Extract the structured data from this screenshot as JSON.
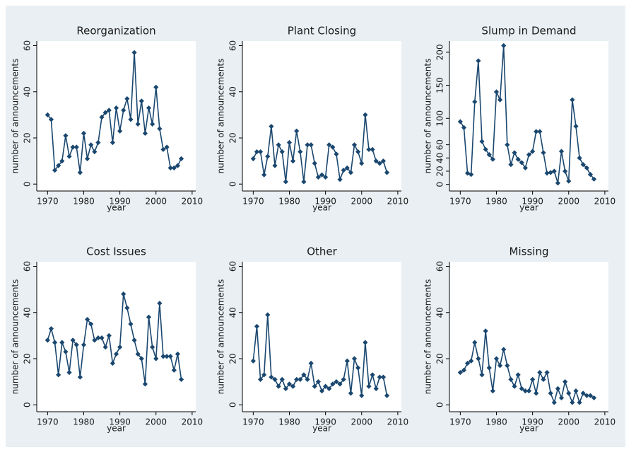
{
  "chart_data": [
    {
      "type": "line",
      "title": "Reorganization",
      "xlabel": "year",
      "ylabel": "number of announcements",
      "color": "#1a476f",
      "x": [
        1970,
        1971,
        1972,
        1973,
        1974,
        1975,
        1976,
        1977,
        1978,
        1979,
        1980,
        1981,
        1982,
        1983,
        1984,
        1985,
        1986,
        1987,
        1988,
        1989,
        1990,
        1991,
        1992,
        1993,
        1994,
        1995,
        1996,
        1997,
        1998,
        1999,
        2000,
        2001,
        2002,
        2003,
        2004,
        2005,
        2006,
        2007
      ],
      "values": [
        30,
        28,
        6,
        8,
        10,
        21,
        12,
        16,
        16,
        5,
        22,
        11,
        17,
        14,
        18,
        29,
        31,
        32,
        18,
        33,
        23,
        32,
        37,
        28,
        57,
        26,
        36,
        22,
        33,
        26,
        42,
        24,
        15,
        16,
        7,
        7,
        8,
        11
      ],
      "xlim": [
        1967,
        2011
      ],
      "xticks": [
        1970,
        1980,
        1990,
        2000,
        2010
      ],
      "ylim": [
        -3,
        62
      ],
      "yticks": [
        0,
        20,
        40,
        60
      ]
    },
    {
      "type": "line",
      "title": "Plant Closing",
      "xlabel": "year",
      "ylabel": "number of announcements",
      "color": "#1a476f",
      "x": [
        1970,
        1971,
        1972,
        1973,
        1974,
        1975,
        1976,
        1977,
        1978,
        1979,
        1980,
        1981,
        1982,
        1983,
        1984,
        1985,
        1986,
        1987,
        1988,
        1989,
        1990,
        1991,
        1992,
        1993,
        1994,
        1995,
        1996,
        1997,
        1998,
        1999,
        2000,
        2001,
        2002,
        2003,
        2004,
        2005,
        2006,
        2007
      ],
      "values": [
        11,
        14,
        14,
        4,
        12,
        25,
        8,
        17,
        14,
        1,
        18,
        10,
        23,
        14,
        1,
        17,
        17,
        9,
        3,
        4,
        3,
        17,
        16,
        13,
        2,
        6,
        7,
        5,
        17,
        14,
        9,
        30,
        15,
        15,
        10,
        9,
        10,
        5
      ],
      "xlim": [
        1967,
        2011
      ],
      "xticks": [
        1970,
        1980,
        1990,
        2000,
        2010
      ],
      "ylim": [
        -3,
        62
      ],
      "yticks": [
        0,
        20,
        40,
        60
      ]
    },
    {
      "type": "line",
      "title": "Slump in Demand",
      "xlabel": "year",
      "ylabel": "number of announcements",
      "color": "#1a476f",
      "x": [
        1970,
        1971,
        1972,
        1973,
        1974,
        1975,
        1976,
        1977,
        1978,
        1979,
        1980,
        1981,
        1982,
        1983,
        1984,
        1985,
        1986,
        1987,
        1988,
        1989,
        1990,
        1991,
        1992,
        1993,
        1994,
        1995,
        1996,
        1997,
        1998,
        1999,
        2000,
        2001,
        2002,
        2003,
        2004,
        2005,
        2006,
        2007
      ],
      "values": [
        95,
        86,
        17,
        15,
        125,
        187,
        65,
        53,
        45,
        38,
        140,
        128,
        210,
        60,
        30,
        48,
        38,
        33,
        25,
        45,
        50,
        80,
        80,
        48,
        17,
        18,
        20,
        2,
        50,
        20,
        5,
        128,
        88,
        40,
        30,
        25,
        15,
        8
      ],
      "xlim": [
        1967,
        2011
      ],
      "xticks": [
        1970,
        1980,
        1990,
        2000,
        2010
      ],
      "ylim": [
        -10,
        217
      ],
      "yticks": [
        0,
        20,
        40,
        60,
        100,
        150,
        200
      ]
    },
    {
      "type": "line",
      "title": "Cost Issues",
      "xlabel": "year",
      "ylabel": "number of announcements",
      "color": "#1a476f",
      "x": [
        1970,
        1971,
        1972,
        1973,
        1974,
        1975,
        1976,
        1977,
        1978,
        1979,
        1980,
        1981,
        1982,
        1983,
        1984,
        1985,
        1986,
        1987,
        1988,
        1989,
        1990,
        1991,
        1992,
        1993,
        1994,
        1995,
        1996,
        1997,
        1998,
        1999,
        2000,
        2001,
        2002,
        2003,
        2004,
        2005,
        2006,
        2007
      ],
      "values": [
        28,
        33,
        27,
        13,
        27,
        23,
        14,
        28,
        26,
        12,
        26,
        37,
        35,
        28,
        29,
        29,
        25,
        30,
        18,
        22,
        25,
        48,
        42,
        35,
        28,
        22,
        20,
        9,
        38,
        25,
        20,
        44,
        21,
        21,
        21,
        15,
        22,
        11
      ],
      "xlim": [
        1967,
        2011
      ],
      "xticks": [
        1970,
        1980,
        1990,
        2000,
        2010
      ],
      "ylim": [
        -3,
        62
      ],
      "yticks": [
        0,
        20,
        40,
        60
      ]
    },
    {
      "type": "line",
      "title": "Other",
      "xlabel": "year",
      "ylabel": "number of announcements",
      "color": "#1a476f",
      "x": [
        1970,
        1971,
        1972,
        1973,
        1974,
        1975,
        1976,
        1977,
        1978,
        1979,
        1980,
        1981,
        1982,
        1983,
        1984,
        1985,
        1986,
        1987,
        1988,
        1989,
        1990,
        1991,
        1992,
        1993,
        1994,
        1995,
        1996,
        1997,
        1998,
        1999,
        2000,
        2001,
        2002,
        2003,
        2004,
        2005,
        2006,
        2007
      ],
      "values": [
        19,
        34,
        11,
        13,
        39,
        12,
        11,
        8,
        11,
        7,
        9,
        8,
        11,
        11,
        13,
        11,
        18,
        8,
        10,
        6,
        8,
        7,
        9,
        10,
        9,
        11,
        19,
        5,
        20,
        16,
        4,
        27,
        8,
        13,
        7,
        12,
        12,
        4
      ],
      "xlim": [
        1967,
        2011
      ],
      "xticks": [
        1970,
        1980,
        1990,
        2000,
        2010
      ],
      "ylim": [
        -3,
        62
      ],
      "yticks": [
        0,
        20,
        40,
        60
      ]
    },
    {
      "type": "line",
      "title": "Missing",
      "xlabel": "year",
      "ylabel": "number of announcements",
      "color": "#1a476f",
      "x": [
        1970,
        1971,
        1972,
        1973,
        1974,
        1975,
        1976,
        1977,
        1978,
        1979,
        1980,
        1981,
        1982,
        1983,
        1984,
        1985,
        1986,
        1987,
        1988,
        1989,
        1990,
        1991,
        1992,
        1993,
        1994,
        1995,
        1996,
        1997,
        1998,
        1999,
        2000,
        2001,
        2002,
        2003,
        2004,
        2005,
        2006,
        2007
      ],
      "values": [
        14,
        15,
        18,
        19,
        27,
        20,
        13,
        32,
        16,
        6,
        20,
        17,
        24,
        17,
        11,
        8,
        13,
        7,
        6,
        6,
        11,
        5,
        14,
        11,
        14,
        5,
        1,
        7,
        3,
        10,
        5,
        1,
        6,
        1,
        5,
        4,
        4,
        3
      ],
      "xlim": [
        1967,
        2011
      ],
      "xticks": [
        1970,
        1980,
        1990,
        2000,
        2010
      ],
      "ylim": [
        -3,
        62
      ],
      "yticks": [
        0,
        20,
        40,
        60
      ]
    }
  ]
}
